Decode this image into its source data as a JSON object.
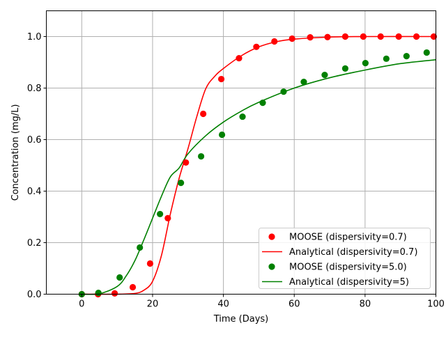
{
  "chart_data": {
    "type": "scatter+line",
    "xlabel": "Time (Days)",
    "ylabel": "Concentration (mg/L)",
    "xlim": [
      -10,
      100
    ],
    "ylim": [
      0,
      1.1
    ],
    "xticks": [
      0,
      20,
      40,
      60,
      80,
      100
    ],
    "yticks": [
      0.0,
      0.2,
      0.4,
      0.6,
      0.8,
      1.0
    ],
    "xtick_labels": [
      "0",
      "20",
      "40",
      "60",
      "80",
      "100"
    ],
    "ytick_labels": [
      "0.0",
      "0.2",
      "0.4",
      "0.6",
      "0.8",
      "1.0"
    ],
    "grid": true,
    "legend_placement": "lower-right",
    "series": [
      {
        "name": "MOOSE (dispersivity=0.7)",
        "kind": "scatter",
        "color": "#ff0000",
        "x": [
          0,
          4.6,
          9.3,
          14.4,
          19.3,
          24.3,
          29.4,
          34.3,
          39.4,
          44.4,
          49.3,
          54.4,
          59.4,
          64.5,
          69.4,
          74.4,
          79.5,
          84.4,
          89.5,
          94.5,
          99.4
        ],
        "y": [
          0,
          0,
          0.003,
          0.027,
          0.119,
          0.295,
          0.511,
          0.7,
          0.835,
          0.916,
          0.96,
          0.981,
          0.992,
          0.997,
          0.998,
          1.0,
          1.0,
          1.0,
          1.0,
          1.0,
          1.0
        ]
      },
      {
        "name": "Analytical (dispersivity=0.7)",
        "kind": "line",
        "color": "#ff0000",
        "x": [
          0,
          10,
          15,
          17.5,
          20,
          22.5,
          25,
          27.5,
          30,
          32.5,
          35,
          37.5,
          40,
          45,
          50,
          55,
          60,
          70,
          80,
          100
        ],
        "y": [
          0,
          0,
          0.003,
          0.015,
          0.05,
          0.15,
          0.31,
          0.45,
          0.565,
          0.69,
          0.797,
          0.845,
          0.876,
          0.925,
          0.96,
          0.98,
          0.99,
          0.998,
          1.0,
          1.0
        ]
      },
      {
        "name": "MOOSE (dispersivity=5.0)",
        "kind": "scatter",
        "color": "#008000",
        "x": [
          0,
          4.7,
          10.7,
          16.4,
          22.1,
          28.0,
          33.7,
          39.6,
          45.4,
          51.1,
          57.0,
          62.7,
          68.6,
          74.4,
          80.1,
          86.0,
          91.7,
          97.4
        ],
        "y": [
          0,
          0.005,
          0.065,
          0.181,
          0.311,
          0.432,
          0.535,
          0.619,
          0.689,
          0.743,
          0.786,
          0.824,
          0.851,
          0.876,
          0.897,
          0.914,
          0.924,
          0.938
        ]
      },
      {
        "name": "Analytical (dispersivity=5)",
        "kind": "line",
        "color": "#008000",
        "x": [
          0,
          5,
          10,
          12.5,
          15,
          17.5,
          20,
          22.5,
          25,
          27.5,
          30,
          35,
          40,
          45,
          50,
          60,
          70,
          80,
          90,
          100
        ],
        "y": [
          0,
          0.002,
          0.03,
          0.07,
          0.13,
          0.21,
          0.295,
          0.38,
          0.455,
          0.49,
          0.545,
          0.615,
          0.668,
          0.71,
          0.745,
          0.8,
          0.84,
          0.87,
          0.895,
          0.91
        ]
      }
    ]
  }
}
